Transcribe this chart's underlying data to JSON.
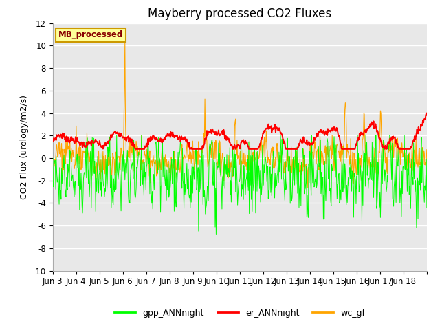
{
  "title": "Mayberry processed CO2 Fluxes",
  "ylabel": "CO2 Flux (urology/m2/s)",
  "ylim": [
    -10,
    12
  ],
  "yticks": [
    -10,
    -8,
    -6,
    -4,
    -2,
    0,
    2,
    4,
    6,
    8,
    10,
    12
  ],
  "x_labels": [
    "Jun 3",
    "Jun 4",
    "Jun 5",
    "Jun 6",
    "Jun 7",
    "Jun 8",
    "Jun 9",
    "Jun 10",
    "Jun 11",
    "Jun 12",
    "Jun 13",
    "Jun 14",
    "Jun 15",
    "Jun 16",
    "Jun 17",
    "Jun 18"
  ],
  "n_days": 16,
  "pts_per_day": 48,
  "gpp_color": "#00ff00",
  "er_color": "#ff0000",
  "wc_color": "#ffa500",
  "bg_color": "#e8e8e8",
  "legend_box_facecolor": "#ffff99",
  "legend_box_edgecolor": "#cc9900",
  "legend_text_color": "#880000",
  "title_fontsize": 12,
  "axis_fontsize": 9,
  "tick_fontsize": 8.5,
  "linewidth_er": 1.4,
  "linewidth_gpp": 0.7,
  "linewidth_wc": 0.8
}
